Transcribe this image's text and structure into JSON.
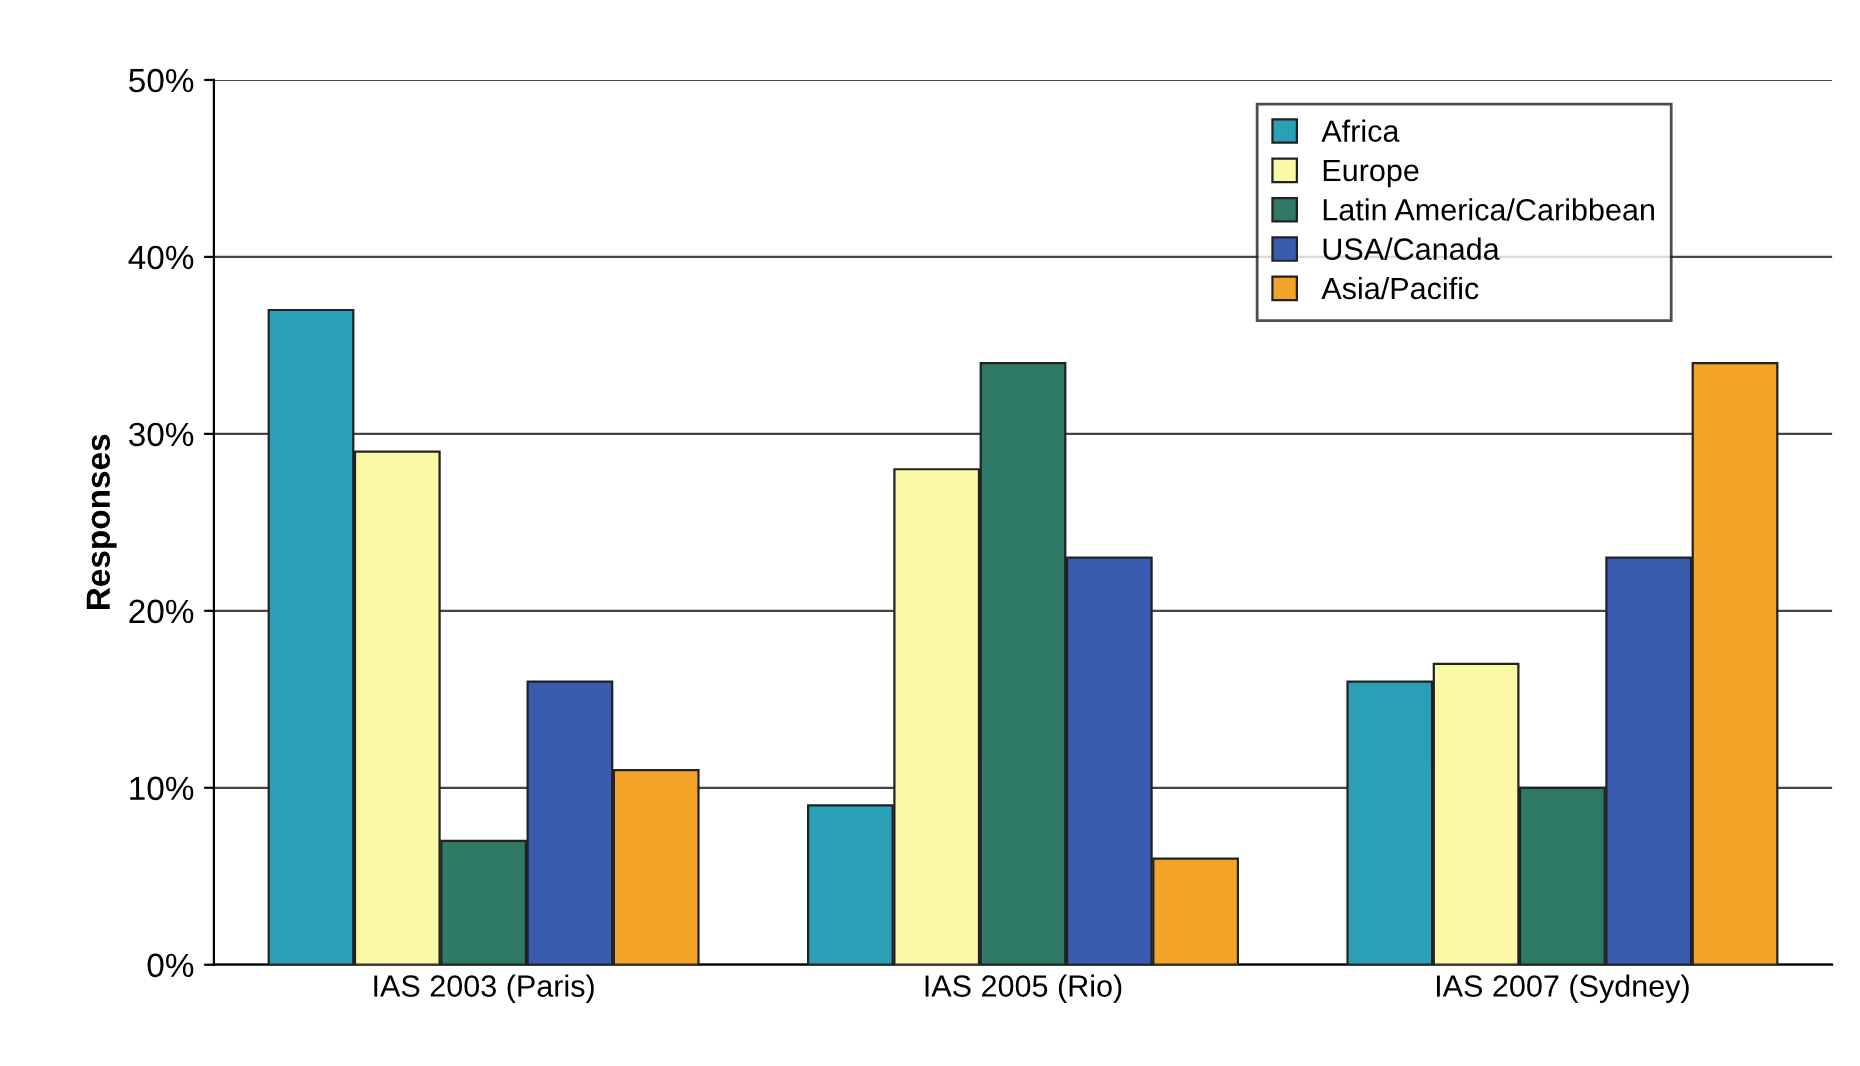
{
  "chart_data": {
    "type": "bar",
    "ylabel": "Responses",
    "categories": [
      "IAS 2003 (Paris)",
      "IAS 2005 (Rio)",
      "IAS 2007 (Sydney)"
    ],
    "series": [
      {
        "name": "Africa",
        "color": "#2a9fb5",
        "values": [
          37,
          9,
          16
        ]
      },
      {
        "name": "Europe",
        "color": "#fbf8a6",
        "values": [
          29,
          28,
          17
        ]
      },
      {
        "name": "Latin America/Caribbean",
        "color": "#2f7a66",
        "values": [
          7,
          34,
          10
        ]
      },
      {
        "name": "USA/Canada",
        "color": "#3a5cb0",
        "values": [
          16,
          23,
          23
        ]
      },
      {
        "name": "Asia/Pacific",
        "color": "#f2a428",
        "values": [
          11,
          6,
          34
        ]
      }
    ],
    "ylim": [
      0,
      50
    ],
    "yticks": [
      {
        "value": 0,
        "label": "0%"
      },
      {
        "value": 10,
        "label": "10%"
      },
      {
        "value": 20,
        "label": "20%"
      },
      {
        "value": 30,
        "label": "30%"
      },
      {
        "value": 40,
        "label": "40%"
      },
      {
        "value": 50,
        "label": "50%"
      }
    ],
    "grid": "y",
    "legend": "top right"
  }
}
